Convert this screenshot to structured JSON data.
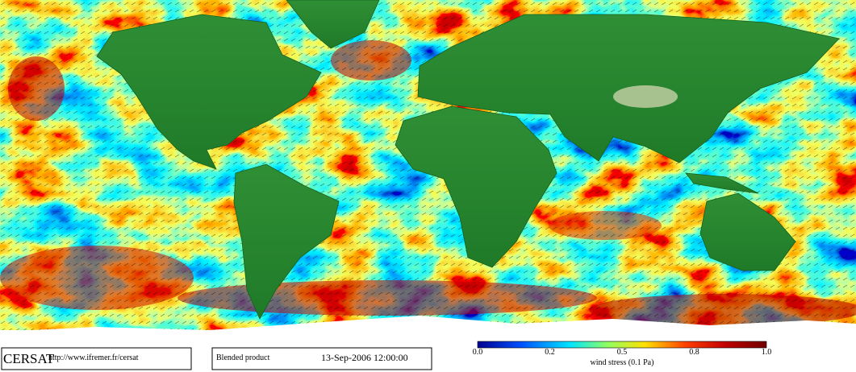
{
  "footer": {
    "logo": "CERSAT",
    "url": "http://www.ifremer.fr/cersat",
    "product": "Blended product",
    "timestamp": "13-Sep-2006 12:00:00"
  },
  "colorbar": {
    "ticks": [
      "0.0",
      "0.2",
      "0.5",
      "0.8",
      "1.0"
    ],
    "label": "wind stress (0.1 Pa)"
  }
}
